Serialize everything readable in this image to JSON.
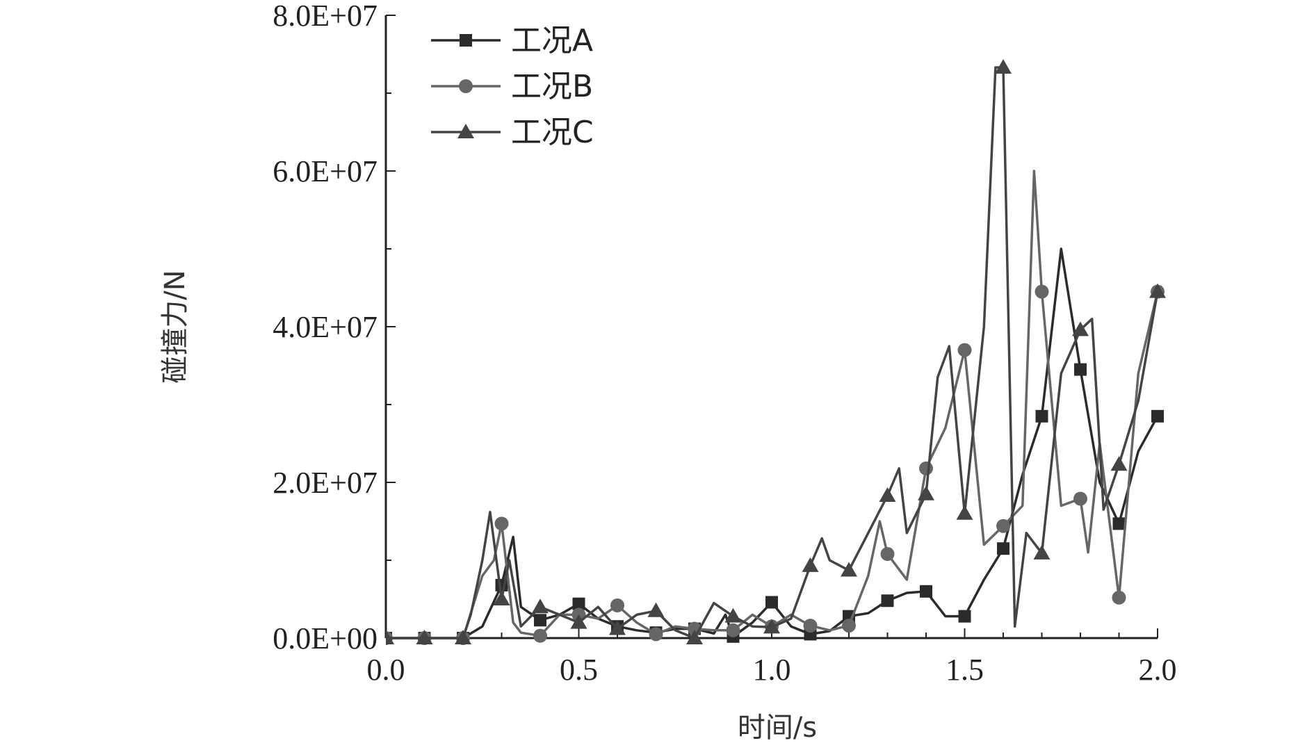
{
  "chart_data": {
    "type": "line",
    "title": "",
    "xlabel": "时间/s",
    "ylabel": "碰撞力/N",
    "xlim": [
      0,
      2.0
    ],
    "ylim": [
      0,
      80000000
    ],
    "x_ticks": [
      0.0,
      0.5,
      1.0,
      1.5,
      2.0
    ],
    "x_tick_labels": [
      "0.0",
      "0.5",
      "1.0",
      "1.5",
      "2.0"
    ],
    "y_ticks": [
      0,
      20000000,
      40000000,
      60000000,
      80000000
    ],
    "y_tick_labels": [
      "0.0E+00",
      "2.0E+07",
      "4.0E+07",
      "6.0E+07",
      "8.0E+07"
    ],
    "grid": false,
    "legend_position": "top-left",
    "series": [
      {
        "name": "工况A",
        "marker": "square",
        "color": "#2b2b2b",
        "x": [
          0.0,
          0.1,
          0.2,
          0.25,
          0.3,
          0.33,
          0.35,
          0.4,
          0.45,
          0.5,
          0.55,
          0.6,
          0.65,
          0.7,
          0.75,
          0.8,
          0.85,
          0.88,
          0.9,
          0.95,
          1.0,
          1.05,
          1.1,
          1.15,
          1.2,
          1.25,
          1.3,
          1.35,
          1.4,
          1.45,
          1.5,
          1.55,
          1.6,
          1.65,
          1.7,
          1.75,
          1.8,
          1.85,
          1.9,
          1.95,
          2.0
        ],
        "y": [
          0,
          0,
          0,
          1500000,
          6800000,
          13000000,
          4000000,
          2300000,
          3000000,
          4400000,
          2500000,
          1500000,
          1000000,
          700000,
          1200000,
          1200000,
          600000,
          3000000,
          200000,
          2000000,
          4600000,
          1500000,
          500000,
          900000,
          2800000,
          3200000,
          4800000,
          5800000,
          6000000,
          2800000,
          2800000,
          7500000,
          11500000,
          21000000,
          28500000,
          50000000,
          34500000,
          20000000,
          14700000,
          24000000,
          28500000
        ]
      },
      {
        "name": "工况B",
        "marker": "circle",
        "color": "#666666",
        "x": [
          0.0,
          0.1,
          0.2,
          0.25,
          0.28,
          0.3,
          0.33,
          0.35,
          0.4,
          0.45,
          0.5,
          0.55,
          0.6,
          0.65,
          0.7,
          0.75,
          0.8,
          0.85,
          0.9,
          0.95,
          1.0,
          1.05,
          1.1,
          1.15,
          1.2,
          1.25,
          1.28,
          1.3,
          1.35,
          1.4,
          1.45,
          1.5,
          1.55,
          1.6,
          1.65,
          1.68,
          1.7,
          1.75,
          1.8,
          1.82,
          1.85,
          1.9,
          1.95,
          2.0
        ],
        "y": [
          0,
          0,
          0,
          8000000,
          10000000,
          14700000,
          2000000,
          700000,
          300000,
          3000000,
          3000000,
          2500000,
          4200000,
          2000000,
          500000,
          1500000,
          1200000,
          1000000,
          1000000,
          3000000,
          1500000,
          3000000,
          1600000,
          1000000,
          1600000,
          8000000,
          15000000,
          10800000,
          7500000,
          21800000,
          27000000,
          37000000,
          12000000,
          14400000,
          17000000,
          60000000,
          44500000,
          17000000,
          17900000,
          11000000,
          25000000,
          5200000,
          34000000,
          44500000
        ]
      },
      {
        "name": "工况C",
        "marker": "triangle",
        "color": "#444444",
        "x": [
          0.0,
          0.1,
          0.2,
          0.22,
          0.25,
          0.27,
          0.3,
          0.32,
          0.35,
          0.4,
          0.45,
          0.5,
          0.55,
          0.6,
          0.65,
          0.7,
          0.75,
          0.8,
          0.85,
          0.9,
          0.95,
          1.0,
          1.05,
          1.1,
          1.13,
          1.15,
          1.2,
          1.25,
          1.3,
          1.33,
          1.35,
          1.4,
          1.43,
          1.46,
          1.5,
          1.55,
          1.58,
          1.6,
          1.63,
          1.66,
          1.7,
          1.75,
          1.8,
          1.83,
          1.86,
          1.9,
          1.95,
          2.0
        ],
        "y": [
          0,
          0,
          0,
          3000000,
          10000000,
          16200000,
          5000000,
          10000000,
          1500000,
          4000000,
          3000000,
          2000000,
          4000000,
          1200000,
          3000000,
          3500000,
          1000000,
          0,
          4500000,
          2800000,
          1500000,
          1400000,
          2500000,
          9300000,
          12800000,
          10000000,
          8700000,
          13500000,
          18300000,
          21800000,
          13500000,
          18500000,
          33500000,
          37500000,
          16000000,
          40000000,
          73300000,
          73300000,
          1500000,
          13500000,
          10900000,
          34000000,
          39600000,
          41000000,
          16500000,
          22300000,
          30500000,
          44500000
        ]
      }
    ]
  }
}
